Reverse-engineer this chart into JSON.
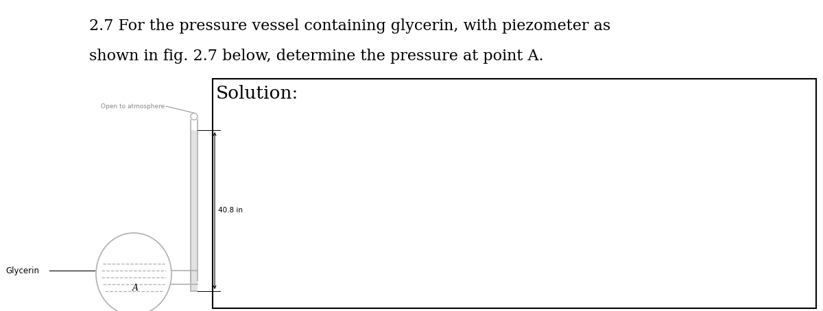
{
  "title_line1": "2.7 For the pressure vessel containing glycerin, with piezometer as",
  "title_line2": "shown in fig. 2.7 below, determine the pressure at point A.",
  "solution_label": "Solution:",
  "open_atm_label": "Open to atmosphere",
  "measurement_label": "40.8 in",
  "glycerin_label": "Glycerin",
  "point_a_label": "A",
  "bg_color": "#ffffff",
  "line_color": "#b0b0b0",
  "text_color": "#000000",
  "dim_line_color": "#888888",
  "box_line_color": "#000000",
  "title_fontsize": 16,
  "solution_fontsize": 19,
  "label_fontsize": 7.5,
  "small_label_fontsize": 6.5,
  "fig_width": 12.0,
  "fig_height": 4.54,
  "dpi": 100
}
